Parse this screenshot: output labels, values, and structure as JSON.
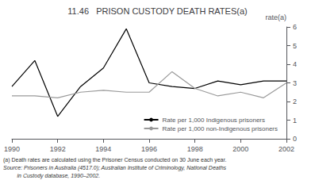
{
  "chart_data": {
    "type": "line",
    "title": "11.46   PRISON CUSTODY DEATH RATES(a)",
    "ylabel": "rate(a)",
    "annotations": [
      "(a) Death rates are calculated using the Prisoner Census conducted on 30 June each year.",
      "Source: Prisoners in Australia (4517.0); Australian Institute of Criminology, National Deaths",
      "         in Custody database, 1990–2002."
    ],
    "x": [
      1990,
      1991,
      1992,
      1993,
      1994,
      1995,
      1996,
      1997,
      1998,
      1999,
      2000,
      2001,
      2002
    ],
    "series": [
      {
        "name": "Rate per 1,000 Indigenous prisoners",
        "color": "#000000",
        "values": [
          2.8,
          4.2,
          1.2,
          2.8,
          3.8,
          5.9,
          3.0,
          2.8,
          2.7,
          3.1,
          2.9,
          3.1,
          3.1
        ]
      },
      {
        "name": "Rate per 1,000 non-Indigenous prisoners",
        "color": "#999999",
        "values": [
          2.3,
          2.3,
          2.2,
          2.5,
          2.6,
          2.5,
          2.5,
          3.6,
          2.7,
          2.3,
          2.5,
          2.2,
          3.0
        ]
      }
    ],
    "xlim": [
      1990,
      2002
    ],
    "xticks": [
      1990,
      1992,
      1994,
      1996,
      1998,
      2000,
      2002
    ],
    "ylim": [
      0,
      6
    ],
    "yticks": [
      0,
      1,
      2,
      3,
      4,
      5,
      6
    ],
    "grid": false,
    "legend": "lower right"
  }
}
